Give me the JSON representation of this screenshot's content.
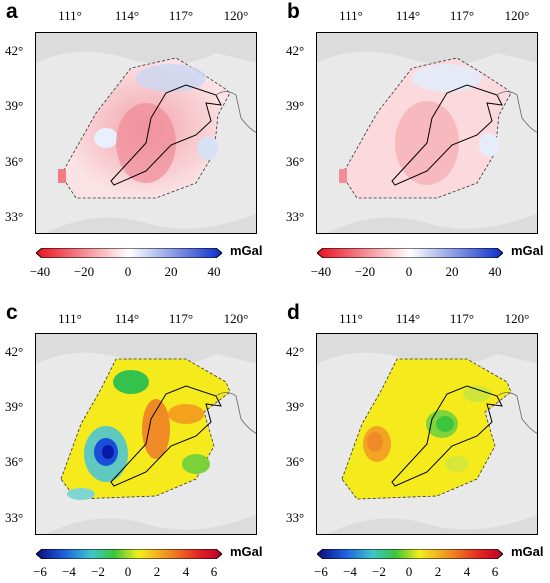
{
  "panels": [
    {
      "letter": "a",
      "lon_ticks": [
        "111°",
        "114°",
        "117°",
        "120°"
      ],
      "lat_ticks": [
        "42°",
        "39°",
        "36°",
        "33°"
      ],
      "colorbar": {
        "unit": "mGal",
        "ticks": [
          "−40",
          "−20",
          "0",
          "20",
          "40"
        ],
        "range": [
          -40,
          40
        ],
        "palette": "red-white-blue"
      }
    },
    {
      "letter": "b",
      "lon_ticks": [
        "111°",
        "114°",
        "117°",
        "120°"
      ],
      "lat_ticks": [
        "42°",
        "39°",
        "36°",
        "33°"
      ],
      "colorbar": {
        "unit": "mGal",
        "ticks": [
          "−40",
          "−20",
          "0",
          "20",
          "40"
        ],
        "range": [
          -40,
          40
        ],
        "palette": "red-white-blue"
      }
    },
    {
      "letter": "c",
      "lon_ticks": [
        "111°",
        "114°",
        "117°",
        "120°"
      ],
      "lat_ticks": [
        "42°",
        "39°",
        "36°",
        "33°"
      ],
      "colorbar": {
        "unit": "mGal",
        "ticks": [
          "−6",
          "−4",
          "−2",
          "0",
          "2",
          "4",
          "6"
        ],
        "range": [
          -6,
          6
        ],
        "palette": "rainbow"
      }
    },
    {
      "letter": "d",
      "lon_ticks": [
        "111°",
        "114°",
        "117°",
        "120°"
      ],
      "lat_ticks": [
        "42°",
        "39°",
        "36°",
        "33°"
      ],
      "colorbar": {
        "unit": "mGal",
        "ticks": [
          "−6",
          "−4",
          "−2",
          "0",
          "2",
          "4",
          "6"
        ],
        "range": [
          -6,
          6
        ],
        "palette": "rainbow"
      }
    }
  ]
}
